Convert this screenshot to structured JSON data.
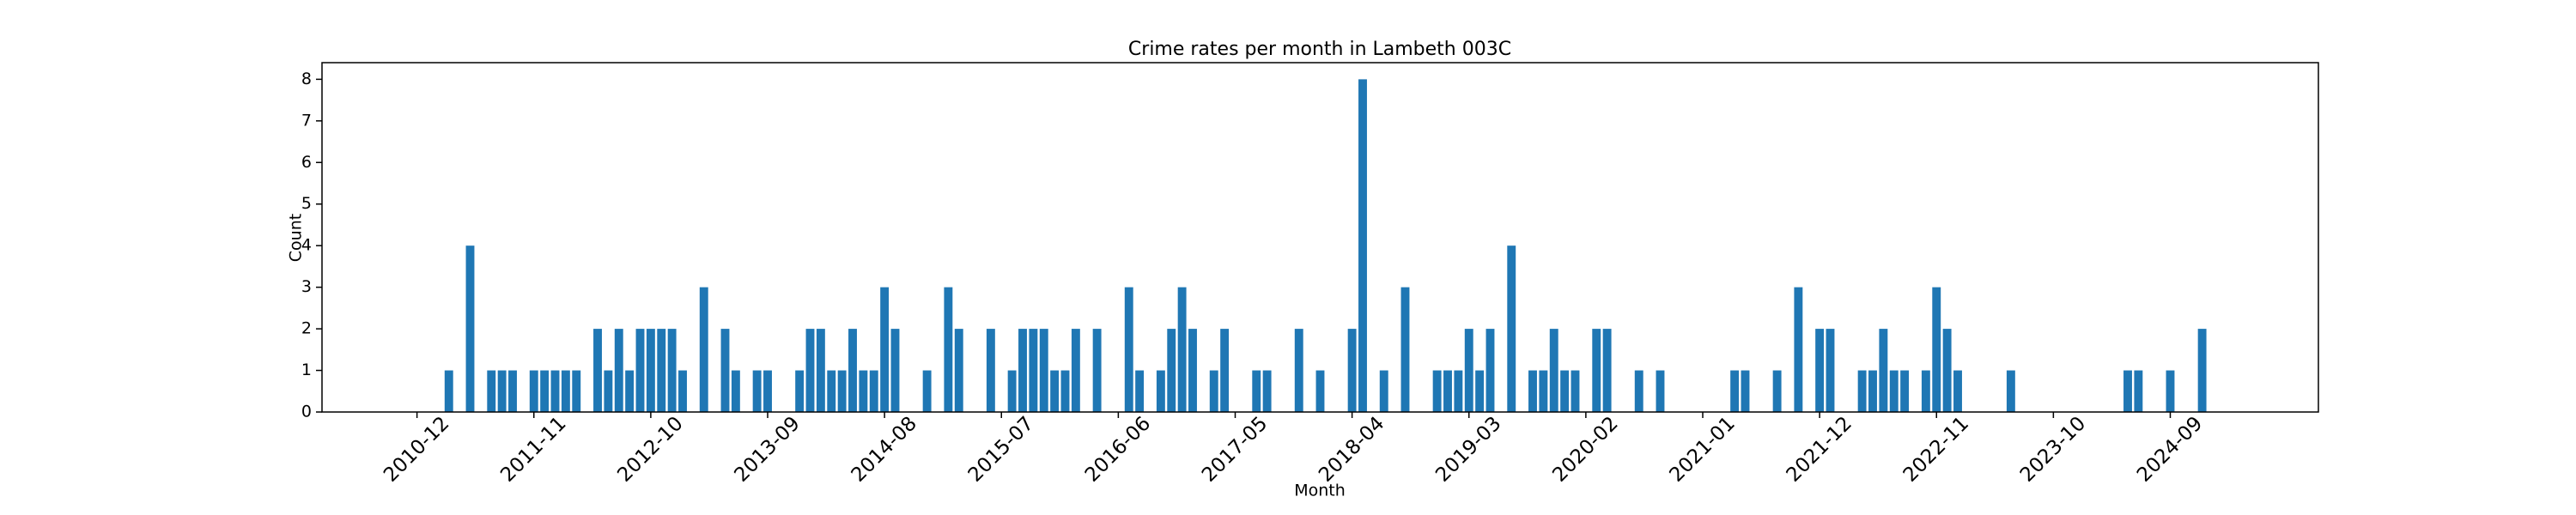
{
  "chart_data": {
    "type": "bar",
    "title": "Crime rates per month in Lambeth 003C",
    "x_label": "Month",
    "y_label": "Count",
    "color": "#1f77b4",
    "categories": [
      "2010-12",
      null,
      null,
      null,
      null,
      null,
      null,
      null,
      null,
      null,
      null,
      "2011-11",
      null,
      null,
      null,
      null,
      null,
      null,
      null,
      null,
      null,
      null,
      "2012-10",
      null,
      null,
      null,
      null,
      null,
      null,
      null,
      null,
      null,
      null,
      "2013-09",
      null,
      null,
      null,
      null,
      null,
      null,
      null,
      null,
      null,
      null,
      "2014-08",
      null,
      null,
      null,
      null,
      null,
      null,
      null,
      null,
      null,
      null,
      "2015-07",
      null,
      null,
      null,
      null,
      null,
      null,
      null,
      null,
      null,
      null,
      "2016-06",
      null,
      null,
      null,
      null,
      null,
      null,
      null,
      null,
      null,
      null,
      "2017-05",
      null,
      null,
      null,
      null,
      null,
      null,
      null,
      null,
      null,
      null,
      "2018-04",
      null,
      null,
      null,
      null,
      null,
      null,
      null,
      null,
      null,
      null,
      "2019-03",
      null,
      null,
      null,
      null,
      null,
      null,
      null,
      null,
      null,
      null,
      "2020-02",
      null,
      null,
      null,
      null,
      null,
      null,
      null,
      null,
      null,
      null,
      "2021-01",
      null,
      null,
      null,
      null,
      null,
      null,
      null,
      null,
      null,
      null,
      "2021-12",
      null,
      null,
      null,
      null,
      null,
      null,
      null,
      null,
      null,
      null,
      "2022-11",
      null,
      null,
      null,
      null,
      null,
      null,
      null,
      null,
      null,
      null,
      "2023-10",
      null,
      null,
      null,
      null,
      null,
      null,
      null,
      null,
      null,
      null,
      "2024-09",
      null,
      null,
      null,
      null,
      null
    ],
    "values": [
      0,
      0,
      0,
      1,
      0,
      4,
      0,
      1,
      1,
      1,
      0,
      1,
      1,
      1,
      1,
      1,
      0,
      2,
      1,
      2,
      1,
      2,
      2,
      2,
      2,
      1,
      0,
      3,
      0,
      2,
      1,
      0,
      1,
      1,
      0,
      0,
      1,
      2,
      2,
      1,
      1,
      2,
      1,
      1,
      3,
      2,
      0,
      0,
      1,
      0,
      3,
      2,
      0,
      0,
      2,
      0,
      1,
      2,
      2,
      2,
      1,
      1,
      2,
      0,
      2,
      0,
      0,
      3,
      1,
      0,
      1,
      2,
      3,
      2,
      0,
      1,
      2,
      0,
      0,
      1,
      1,
      0,
      0,
      2,
      0,
      1,
      0,
      0,
      2,
      8,
      0,
      1,
      0,
      3,
      0,
      0,
      1,
      1,
      1,
      2,
      1,
      2,
      0,
      4,
      0,
      1,
      1,
      2,
      1,
      1,
      0,
      2,
      2,
      0,
      0,
      1,
      0,
      1,
      0,
      0,
      0,
      0,
      0,
      0,
      1,
      1,
      0,
      0,
      1,
      0,
      3,
      0,
      2,
      2,
      0,
      0,
      1,
      1,
      2,
      1,
      1,
      0,
      1,
      3,
      2,
      1,
      0,
      0,
      0,
      0,
      1,
      0,
      0,
      0,
      0,
      0,
      0,
      0,
      0,
      0,
      0,
      1,
      1,
      0,
      0,
      1,
      0,
      0,
      2,
      0,
      0
    ],
    "ylim": [
      0,
      8.4
    ],
    "yticks": [
      0,
      1,
      2,
      3,
      4,
      5,
      6,
      7,
      8
    ],
    "grid": false
  }
}
